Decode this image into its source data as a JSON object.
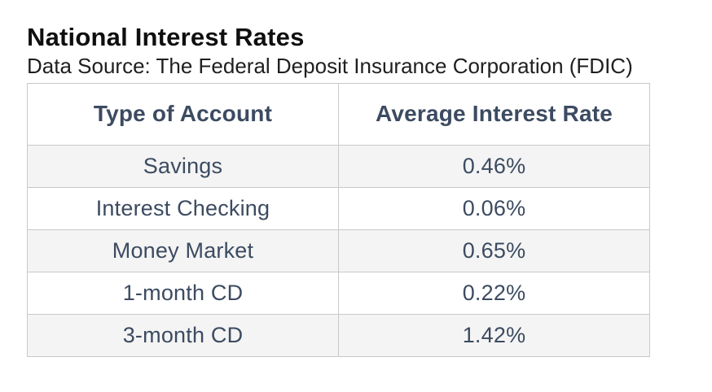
{
  "header": {
    "title": "National Interest Rates",
    "subtitle": "Data Source: The Federal Deposit Insurance Corporation (FDIC)"
  },
  "chart_data": {
    "type": "table",
    "title": "National Interest Rates",
    "subtitle": "Data Source: The Federal Deposit Insurance Corporation (FDIC)",
    "columns": [
      "Type of Account",
      "Average Interest Rate"
    ],
    "rows": [
      [
        "Savings",
        "0.46%"
      ],
      [
        "Interest Checking",
        "0.06%"
      ],
      [
        "Money Market",
        "0.65%"
      ],
      [
        "1-month CD",
        "0.22%"
      ],
      [
        "3-month CD",
        "1.42%"
      ]
    ],
    "rates_numeric_percent": {
      "Savings": 0.46,
      "Interest Checking": 0.06,
      "Money Market": 0.65,
      "1-month CD": 0.22,
      "3-month CD": 1.42
    }
  },
  "colors": {
    "title_text": "#0f0f0f",
    "subtitle_text": "#1f1f1f",
    "table_text": "#3c4b61",
    "stripe_background": "#f4f4f4",
    "border": "#c9c9c9",
    "page_background": "#ffffff"
  }
}
